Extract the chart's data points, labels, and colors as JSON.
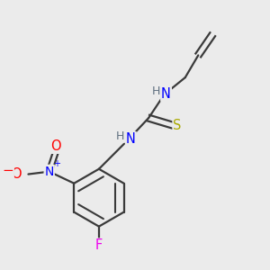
{
  "bg_color": "#ebebeb",
  "bond_color": "#3a3a3a",
  "atom_colors": {
    "N": "#0000ff",
    "H": "#607080",
    "S": "#aaaa00",
    "O": "#ff0000",
    "F": "#ee00ee",
    "C": "#3a3a3a"
  },
  "figsize": [
    3.0,
    3.0
  ],
  "dpi": 100
}
